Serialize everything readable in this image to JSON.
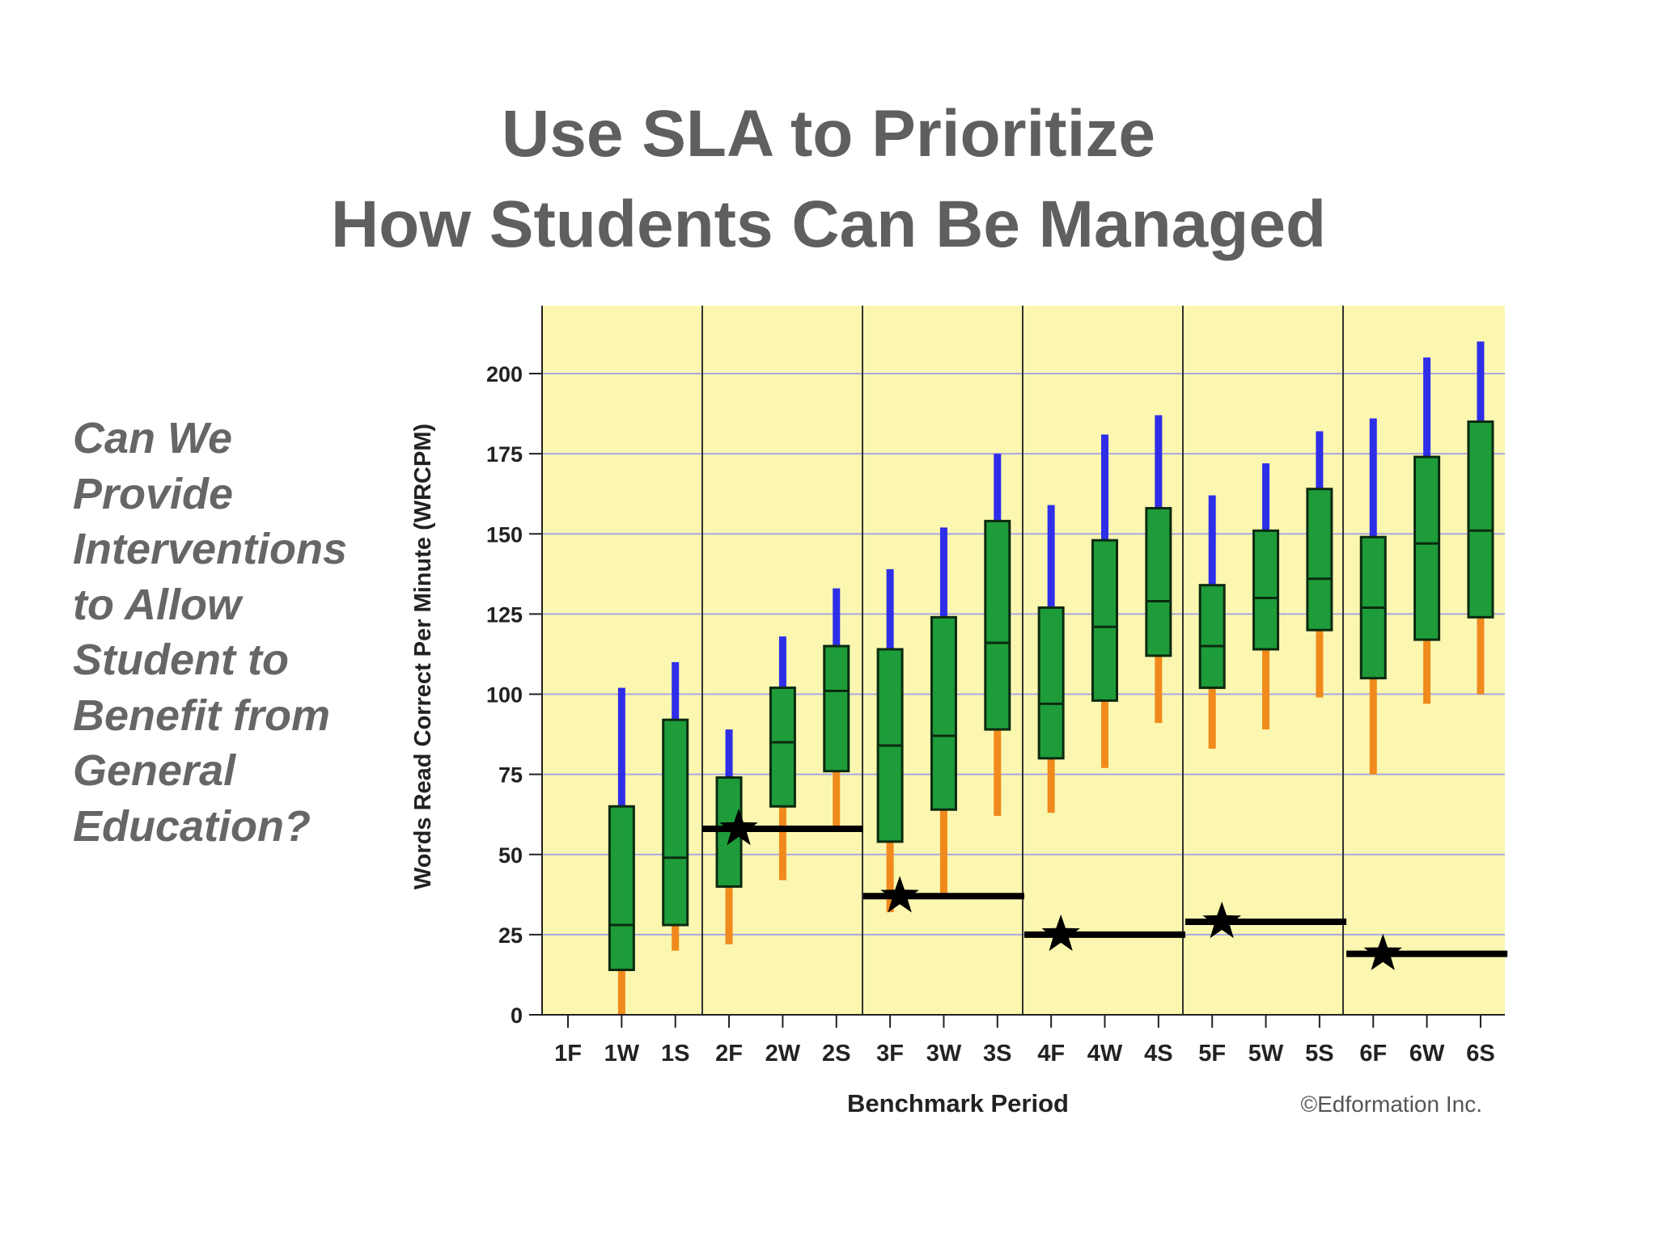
{
  "slide": {
    "title_line1": "Use SLA to Prioritize",
    "title_line2": "How Students Can Be Managed",
    "side_lines": [
      "Can We",
      "Provide",
      "Interventions",
      "to Allow",
      "Student to",
      "Benefit from",
      "General",
      "Education?"
    ]
  },
  "chart_data": {
    "type": "box",
    "xlabel": "Benchmark Period",
    "ylabel": "Words Read Correct Per Minute (WRCPM)",
    "credit": "©Edformation Inc.",
    "ylim": [
      0,
      200
    ],
    "yticks": [
      0,
      25,
      50,
      75,
      100,
      125,
      150,
      175,
      200
    ],
    "categories": [
      "1F",
      "1W",
      "1S",
      "2F",
      "2W",
      "2S",
      "3F",
      "3W",
      "3S",
      "4F",
      "4W",
      "4S",
      "5F",
      "5W",
      "5S",
      "6F",
      "6W",
      "6S"
    ],
    "boxes": [
      null,
      {
        "min": 0,
        "q1": 14,
        "median": 28,
        "q3": 65,
        "max": 102
      },
      {
        "min": 20,
        "q1": 28,
        "median": 49,
        "q3": 92,
        "max": 110
      },
      {
        "min": 22,
        "q1": 40,
        "median": 58,
        "q3": 74,
        "max": 89
      },
      {
        "min": 42,
        "q1": 65,
        "median": 85,
        "q3": 102,
        "max": 118
      },
      {
        "min": 57,
        "q1": 76,
        "median": 101,
        "q3": 115,
        "max": 133
      },
      {
        "min": 32,
        "q1": 54,
        "median": 84,
        "q3": 114,
        "max": 139
      },
      {
        "min": 38,
        "q1": 64,
        "median": 87,
        "q3": 124,
        "max": 152
      },
      {
        "min": 62,
        "q1": 89,
        "median": 116,
        "q3": 154,
        "max": 175
      },
      {
        "min": 63,
        "q1": 80,
        "median": 97,
        "q3": 127,
        "max": 159
      },
      {
        "min": 77,
        "q1": 98,
        "median": 121,
        "q3": 148,
        "max": 181
      },
      {
        "min": 91,
        "q1": 112,
        "median": 129,
        "q3": 158,
        "max": 187
      },
      {
        "min": 83,
        "q1": 102,
        "median": 115,
        "q3": 134,
        "max": 162
      },
      {
        "min": 89,
        "q1": 114,
        "median": 130,
        "q3": 151,
        "max": 172
      },
      {
        "min": 99,
        "q1": 120,
        "median": 136,
        "q3": 164,
        "max": 182
      },
      {
        "min": 75,
        "q1": 105,
        "median": 127,
        "q3": 149,
        "max": 186
      },
      {
        "min": 97,
        "q1": 117,
        "median": 147,
        "q3": 174,
        "max": 205
      },
      {
        "min": 100,
        "q1": 124,
        "median": 151,
        "q3": 185,
        "max": 210
      }
    ],
    "targets": [
      {
        "grade_start": 4,
        "grade_end": 6,
        "value": 58,
        "star_at": 4
      },
      {
        "grade_start": 7,
        "grade_end": 9,
        "value": 37,
        "star_at": 7
      },
      {
        "grade_start": 10,
        "grade_end": 12,
        "value": 25,
        "star_at": 10
      },
      {
        "grade_start": 13,
        "grade_end": 15,
        "value": 29,
        "star_at": 13
      },
      {
        "grade_start": 16,
        "grade_end": 18,
        "value": 19,
        "star_at": 16
      }
    ],
    "grid": true,
    "colors": {
      "plot_bg": "#fbf7b0",
      "grid": "#a8a8e0",
      "box_fill": "#1e9c3a",
      "upper_whisker": "#2e2ee8",
      "lower_whisker": "#f08a1c",
      "target_line": "#000000"
    }
  }
}
